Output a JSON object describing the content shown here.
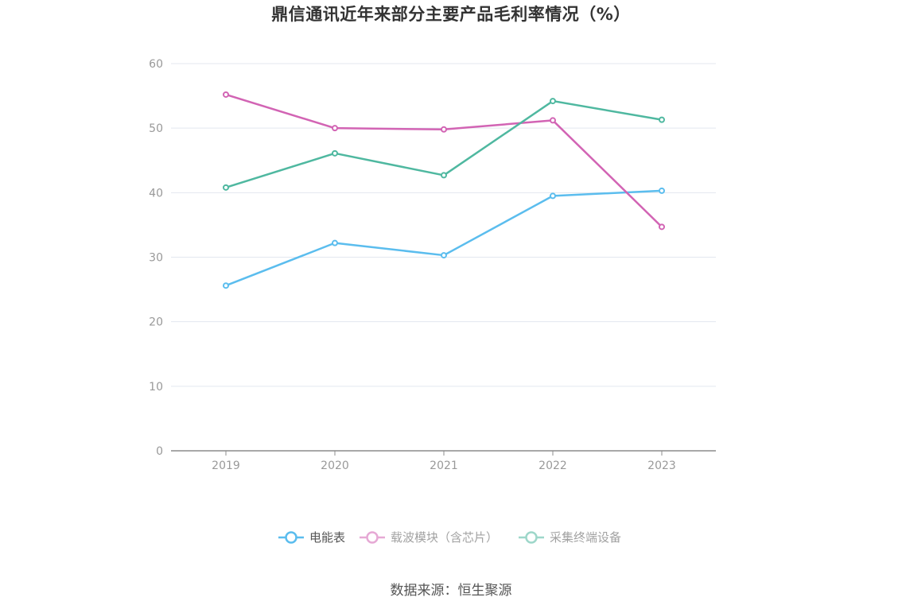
{
  "chart_data": {
    "type": "line",
    "title": "鼎信通讯近年来部分主要产品毛利率情况（%）",
    "categories": [
      "2019",
      "2020",
      "2021",
      "2022",
      "2023"
    ],
    "ylim": [
      0,
      60
    ],
    "yticks": [
      0,
      10,
      20,
      30,
      40,
      50,
      60
    ],
    "grid": true,
    "legend_position": "bottom-center",
    "series": [
      {
        "name": "电能表",
        "color": "#5bbdee",
        "values": [
          25.6,
          32.2,
          30.3,
          39.5,
          40.3
        ]
      },
      {
        "name": "载波模块（含芯片）",
        "color": "#d264b4",
        "values": [
          55.2,
          50.0,
          49.8,
          51.2,
          34.7
        ]
      },
      {
        "name": "采集终端设备",
        "color": "#4fb8a0",
        "values": [
          40.8,
          46.1,
          42.7,
          54.2,
          51.3
        ]
      }
    ]
  },
  "source": "数据来源：恒生聚源"
}
